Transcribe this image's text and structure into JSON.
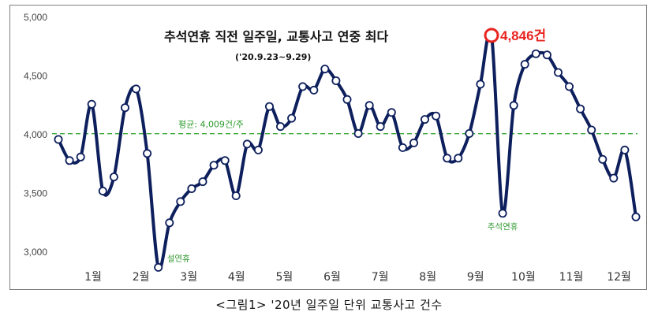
{
  "chart_data": {
    "type": "line",
    "title": "추석연휴 직전 일주일, 교통사고 연중 최다",
    "subtitle": "('20.9.23~9.29)",
    "caption": "<그림1> '20년 일주일 단위 교통사고 건수",
    "xlabel": "",
    "ylabel": "",
    "ylim": [
      2900,
      5000
    ],
    "yticks": [
      3000,
      3500,
      4000,
      4500,
      5000
    ],
    "ytick_labels": [
      "3,000",
      "3,500",
      "4,000",
      "4,500",
      "5,000"
    ],
    "month_labels": [
      "1월",
      "2월",
      "3월",
      "4월",
      "5월",
      "6월",
      "7월",
      "8월",
      "9월",
      "10월",
      "11월",
      "12월"
    ],
    "grid": false,
    "average": {
      "value": 4009,
      "label": "평균: 4,009건/주",
      "color": "#3aa83a"
    },
    "series": [
      {
        "color": "#0d1f5c",
        "values": [
          3960,
          3780,
          3810,
          4260,
          3520,
          3640,
          4230,
          4390,
          3840,
          2870,
          3250,
          3430,
          3540,
          3600,
          3740,
          3780,
          3480,
          3920,
          3870,
          4240,
          4070,
          4140,
          4410,
          4380,
          4560,
          4460,
          4300,
          4010,
          4250,
          4070,
          4190,
          3890,
          3930,
          4130,
          4160,
          3800,
          3800,
          4010,
          4430,
          4846,
          3330,
          4250,
          4600,
          4690,
          4680,
          4530,
          4410,
          4220,
          4040,
          3790,
          3630,
          3870,
          3300
        ]
      }
    ],
    "annotations": [
      {
        "label": "4,846건",
        "value": 4846,
        "color": "#e8231f"
      },
      {
        "label": "설연휴",
        "value": 2870
      },
      {
        "label": "추석연휴",
        "value": 3330
      }
    ]
  }
}
